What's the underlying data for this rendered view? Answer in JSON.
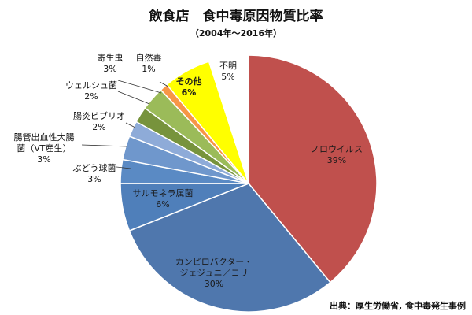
{
  "chart_data": {
    "type": "pie",
    "title": "飲食店　食中毒原因物質比率",
    "subtitle": "（2004年～2016年）",
    "source": "出典：厚生労働省, 食中毒発生事例",
    "slices": [
      {
        "name": "ノロウイルス",
        "label_lines": [
          "ノロウイルス"
        ],
        "percent_label": "39%",
        "value": 39,
        "color": "#c0504d"
      },
      {
        "name": "カンピロバクター・ジェジュニ／コリ",
        "label_lines": [
          "カンピロバクター・",
          "ジェジュニ／コリ"
        ],
        "percent_label": "30%",
        "value": 30,
        "color": "#4f77ad"
      },
      {
        "name": "サルモネラ属菌",
        "label_lines": [
          "サルモネラ属菌"
        ],
        "percent_label": "6%",
        "value": 6,
        "color": "#4f7fba"
      },
      {
        "name": "ぶどう球菌",
        "label_lines": [
          "ぶどう球菌"
        ],
        "percent_label": "3%",
        "value": 3,
        "color": "#5a8ac4"
      },
      {
        "name": "腸管出血性大腸菌（VT産生）",
        "label_lines": [
          "腸管出血性大腸",
          "菌（VT産生）"
        ],
        "percent_label": "3%",
        "value": 3,
        "color": "#6f97cc"
      },
      {
        "name": "腸炎ビブリオ",
        "label_lines": [
          "腸炎ビブリオ"
        ],
        "percent_label": "2%",
        "value": 2,
        "color": "#8eabd8"
      },
      {
        "name": "ウェルシュ菌",
        "label_lines": [
          "ウェルシュ菌"
        ],
        "percent_label": "2%",
        "value": 2,
        "color": "#77933c"
      },
      {
        "name": "寄生虫",
        "label_lines": [
          "寄生虫"
        ],
        "percent_label": "3%",
        "value": 3,
        "color": "#9bbb59"
      },
      {
        "name": "自然毒",
        "label_lines": [
          "自然毒"
        ],
        "percent_label": "1%",
        "value": 1,
        "color": "#f79646"
      },
      {
        "name": "その他",
        "label_lines": [
          "その他"
        ],
        "percent_label": "6%",
        "value": 6,
        "color": "#ffff00"
      },
      {
        "name": "不明",
        "label_lines": [
          "不明"
        ],
        "percent_label": "5%",
        "value": 5,
        "color": "#ffffff"
      }
    ]
  }
}
